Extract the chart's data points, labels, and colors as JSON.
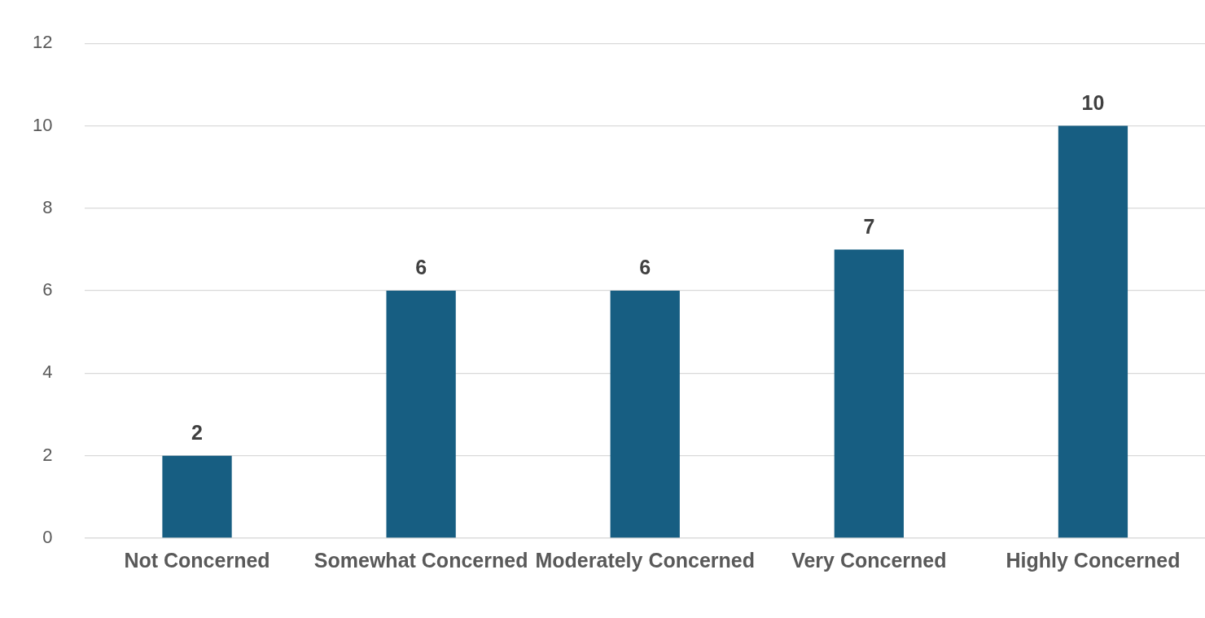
{
  "chart_data": {
    "type": "bar",
    "categories": [
      "Not Concerned",
      "Somewhat Concerned",
      "Moderately Concerned",
      "Very Concerned",
      "Highly Concerned"
    ],
    "values": [
      2,
      6,
      6,
      7,
      10
    ],
    "color": "#175e82",
    "ylim": [
      0,
      12
    ],
    "yticks": [
      0,
      2,
      4,
      6,
      8,
      10,
      12
    ],
    "grid": "y",
    "data_labels": true,
    "legend": false
  }
}
